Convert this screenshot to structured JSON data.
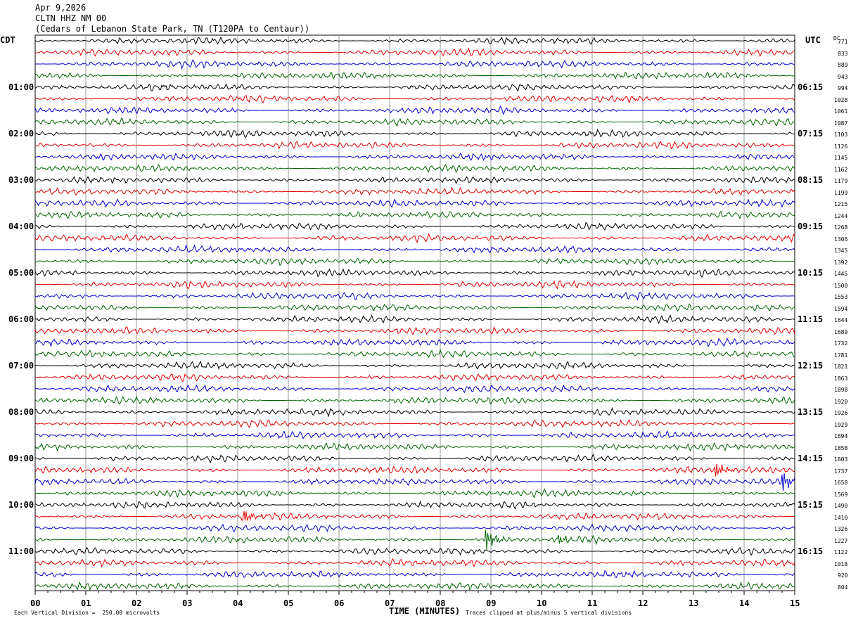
{
  "header": {
    "date": "Apr 9,2026",
    "station": "CLTN HHZ NM 00",
    "location": "(Cedars of Lebanon State Park, TN (T120PA to Centaur))"
  },
  "labels": {
    "left_timezone": "CDT",
    "right_timezone": "UTC",
    "dc_header": "DC"
  },
  "footer": {
    "scale_note": "Each Vertical Division =  250.00 microvolts",
    "clip_note": "Traces clipped at plus/minus 5 vertical divisions"
  },
  "chart_data": {
    "type": "line",
    "subtype": "helicorder",
    "xlabel": "TIME (MINUTES)",
    "x_ticks": [
      "00",
      "01",
      "02",
      "03",
      "04",
      "05",
      "06",
      "07",
      "08",
      "09",
      "10",
      "11",
      "12",
      "13",
      "14",
      "15"
    ],
    "x_range": [
      0,
      15
    ],
    "grid": true,
    "trace_colors": [
      "#000000",
      "#e00000",
      "#0000cc",
      "#006400"
    ],
    "rows_per_hour": 4,
    "row_minutes": 15,
    "left_hour_labels": [
      "01:00",
      "02:00",
      "03:00",
      "04:00",
      "05:00",
      "06:00",
      "07:00",
      "08:00",
      "09:00",
      "10:00",
      "11:00"
    ],
    "right_hour_labels": [
      "06:15",
      "07:15",
      "08:15",
      "09:15",
      "10:15",
      "11:15",
      "12:15",
      "13:15",
      "14:15",
      "15:15",
      "16:15"
    ],
    "dc_offsets": [
      "771",
      "833",
      "889",
      "943",
      "994",
      "1028",
      "1061",
      "1087",
      "1103",
      "1126",
      "1145",
      "1162",
      "1179",
      "1199",
      "1215",
      "1244",
      "1268",
      "1306",
      "1345",
      "1392",
      "1445",
      "1500",
      "1553",
      "1594",
      "1644",
      "1689",
      "1732",
      "1781",
      "1821",
      "1863",
      "1898",
      "1920",
      "1926",
      "1929",
      "1894",
      "1858",
      "1803",
      "1737",
      "1658",
      "1569",
      "1490",
      "1410",
      "1326",
      "1227",
      "1122",
      "1018",
      "920",
      "804"
    ],
    "events": [
      {
        "row": 37,
        "minute": 13.45,
        "amplitude": 3.0
      },
      {
        "row": 38,
        "minute": 14.75,
        "amplitude": 4.5
      },
      {
        "row": 41,
        "minute": 4.1,
        "amplitude": 3.0
      },
      {
        "row": 43,
        "minute": 8.9,
        "amplitude": 5.0
      },
      {
        "row": 43,
        "minute": 10.35,
        "amplitude": 2.0
      }
    ]
  }
}
